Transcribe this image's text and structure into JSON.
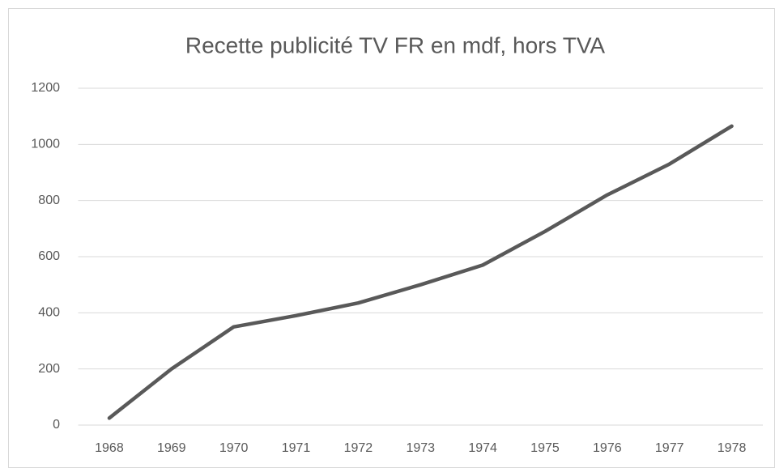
{
  "chart_data": {
    "type": "line",
    "title": "Recette publicité TV FR en mdf, hors TVA",
    "categories": [
      "1968",
      "1969",
      "1970",
      "1971",
      "1972",
      "1973",
      "1974",
      "1975",
      "1976",
      "1977",
      "1978"
    ],
    "series": [
      {
        "name": "Recette",
        "color": "#595959",
        "values": [
          25,
          200,
          350,
          390,
          435,
          500,
          570,
          690,
          820,
          930,
          1065
        ]
      }
    ],
    "ylim": [
      0,
      1200
    ],
    "yticks": [
      0,
      200,
      400,
      600,
      800,
      1000,
      1200
    ],
    "grid": true
  }
}
